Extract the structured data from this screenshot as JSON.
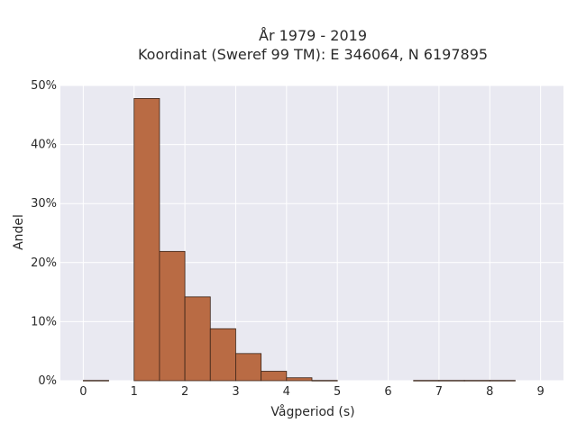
{
  "chart_data": {
    "type": "bar",
    "title_line1": "År 1979 - 2019",
    "title_line2": "Koordinat (Sweref 99 TM): E 346064, N 6197895",
    "xlabel": "Vågperiod (s)",
    "ylabel": "Andel",
    "xlim": [
      -0.45,
      9.45
    ],
    "ylim": [
      0,
      50
    ],
    "x_ticks": [
      0,
      1,
      2,
      3,
      4,
      5,
      6,
      7,
      8,
      9
    ],
    "y_ticks": [
      0,
      10,
      20,
      30,
      40,
      50
    ],
    "y_tick_labels": [
      "0%",
      "10%",
      "20%",
      "30%",
      "40%",
      "50%"
    ],
    "bin_width": 0.5,
    "bins": [
      {
        "start": 0.0,
        "value": 0.05
      },
      {
        "start": 0.5,
        "value": 0
      },
      {
        "start": 1.0,
        "value": 47.8
      },
      {
        "start": 1.5,
        "value": 21.9
      },
      {
        "start": 2.0,
        "value": 14.2
      },
      {
        "start": 2.5,
        "value": 8.8
      },
      {
        "start": 3.0,
        "value": 4.6
      },
      {
        "start": 3.5,
        "value": 1.6
      },
      {
        "start": 4.0,
        "value": 0.5
      },
      {
        "start": 4.5,
        "value": 0.05
      },
      {
        "start": 5.0,
        "value": 0
      },
      {
        "start": 5.5,
        "value": 0
      },
      {
        "start": 6.0,
        "value": 0
      },
      {
        "start": 6.5,
        "value": 0.05
      },
      {
        "start": 7.0,
        "value": 0.05
      },
      {
        "start": 7.5,
        "value": 0.05
      },
      {
        "start": 8.0,
        "value": 0.05
      }
    ],
    "grid": true,
    "colors": {
      "bar_fill": "#b96b44",
      "bar_stroke": "#3b2418",
      "plot_bg": "#e9e9f1",
      "grid": "#ffffff"
    }
  }
}
